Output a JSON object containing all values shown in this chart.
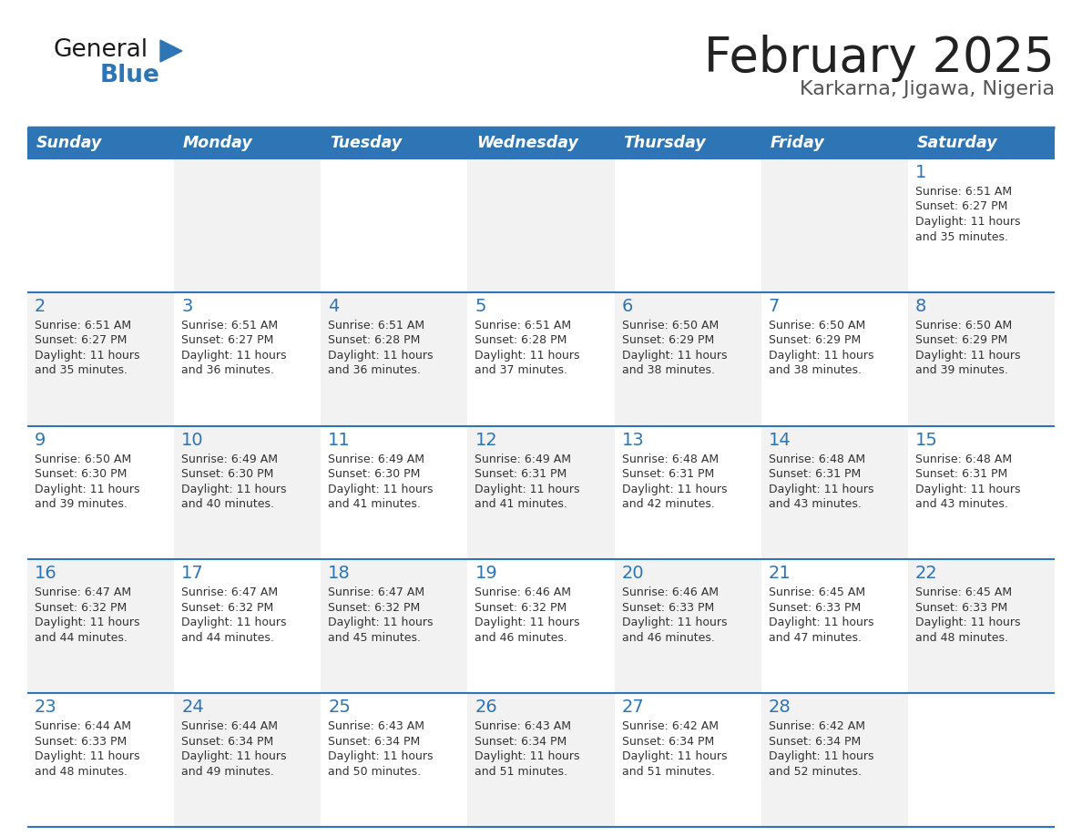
{
  "title": "February 2025",
  "subtitle": "Karkarna, Jigawa, Nigeria",
  "days_of_week": [
    "Sunday",
    "Monday",
    "Tuesday",
    "Wednesday",
    "Thursday",
    "Friday",
    "Saturday"
  ],
  "header_bg": "#2E75B6",
  "header_text": "#FFFFFF",
  "cell_bg_light": "#FFFFFF",
  "cell_bg_dark": "#F2F2F2",
  "day_number_color": "#2E75B6",
  "text_color": "#333333",
  "line_color": "#2E75B6",
  "title_color": "#222222",
  "subtitle_color": "#555555",
  "logo_general_color": "#1a1a1a",
  "logo_blue_color": "#2E75B6",
  "logo_triangle_color": "#2E75B6",
  "calendar_data": [
    [
      null,
      null,
      null,
      null,
      null,
      null,
      {
        "day": 1,
        "sunrise": "6:51 AM",
        "sunset": "6:27 PM",
        "daylight_suffix": "35 minutes."
      }
    ],
    [
      {
        "day": 2,
        "sunrise": "6:51 AM",
        "sunset": "6:27 PM",
        "daylight_suffix": "35 minutes."
      },
      {
        "day": 3,
        "sunrise": "6:51 AM",
        "sunset": "6:27 PM",
        "daylight_suffix": "36 minutes."
      },
      {
        "day": 4,
        "sunrise": "6:51 AM",
        "sunset": "6:28 PM",
        "daylight_suffix": "36 minutes."
      },
      {
        "day": 5,
        "sunrise": "6:51 AM",
        "sunset": "6:28 PM",
        "daylight_suffix": "37 minutes."
      },
      {
        "day": 6,
        "sunrise": "6:50 AM",
        "sunset": "6:29 PM",
        "daylight_suffix": "38 minutes."
      },
      {
        "day": 7,
        "sunrise": "6:50 AM",
        "sunset": "6:29 PM",
        "daylight_suffix": "38 minutes."
      },
      {
        "day": 8,
        "sunrise": "6:50 AM",
        "sunset": "6:29 PM",
        "daylight_suffix": "39 minutes."
      }
    ],
    [
      {
        "day": 9,
        "sunrise": "6:50 AM",
        "sunset": "6:30 PM",
        "daylight_suffix": "39 minutes."
      },
      {
        "day": 10,
        "sunrise": "6:49 AM",
        "sunset": "6:30 PM",
        "daylight_suffix": "40 minutes."
      },
      {
        "day": 11,
        "sunrise": "6:49 AM",
        "sunset": "6:30 PM",
        "daylight_suffix": "41 minutes."
      },
      {
        "day": 12,
        "sunrise": "6:49 AM",
        "sunset": "6:31 PM",
        "daylight_suffix": "41 minutes."
      },
      {
        "day": 13,
        "sunrise": "6:48 AM",
        "sunset": "6:31 PM",
        "daylight_suffix": "42 minutes."
      },
      {
        "day": 14,
        "sunrise": "6:48 AM",
        "sunset": "6:31 PM",
        "daylight_suffix": "43 minutes."
      },
      {
        "day": 15,
        "sunrise": "6:48 AM",
        "sunset": "6:31 PM",
        "daylight_suffix": "43 minutes."
      }
    ],
    [
      {
        "day": 16,
        "sunrise": "6:47 AM",
        "sunset": "6:32 PM",
        "daylight_suffix": "44 minutes."
      },
      {
        "day": 17,
        "sunrise": "6:47 AM",
        "sunset": "6:32 PM",
        "daylight_suffix": "44 minutes."
      },
      {
        "day": 18,
        "sunrise": "6:47 AM",
        "sunset": "6:32 PM",
        "daylight_suffix": "45 minutes."
      },
      {
        "day": 19,
        "sunrise": "6:46 AM",
        "sunset": "6:32 PM",
        "daylight_suffix": "46 minutes."
      },
      {
        "day": 20,
        "sunrise": "6:46 AM",
        "sunset": "6:33 PM",
        "daylight_suffix": "46 minutes."
      },
      {
        "day": 21,
        "sunrise": "6:45 AM",
        "sunset": "6:33 PM",
        "daylight_suffix": "47 minutes."
      },
      {
        "day": 22,
        "sunrise": "6:45 AM",
        "sunset": "6:33 PM",
        "daylight_suffix": "48 minutes."
      }
    ],
    [
      {
        "day": 23,
        "sunrise": "6:44 AM",
        "sunset": "6:33 PM",
        "daylight_suffix": "48 minutes."
      },
      {
        "day": 24,
        "sunrise": "6:44 AM",
        "sunset": "6:34 PM",
        "daylight_suffix": "49 minutes."
      },
      {
        "day": 25,
        "sunrise": "6:43 AM",
        "sunset": "6:34 PM",
        "daylight_suffix": "50 minutes."
      },
      {
        "day": 26,
        "sunrise": "6:43 AM",
        "sunset": "6:34 PM",
        "daylight_suffix": "51 minutes."
      },
      {
        "day": 27,
        "sunrise": "6:42 AM",
        "sunset": "6:34 PM",
        "daylight_suffix": "51 minutes."
      },
      {
        "day": 28,
        "sunrise": "6:42 AM",
        "sunset": "6:34 PM",
        "daylight_suffix": "52 minutes."
      },
      null
    ]
  ]
}
